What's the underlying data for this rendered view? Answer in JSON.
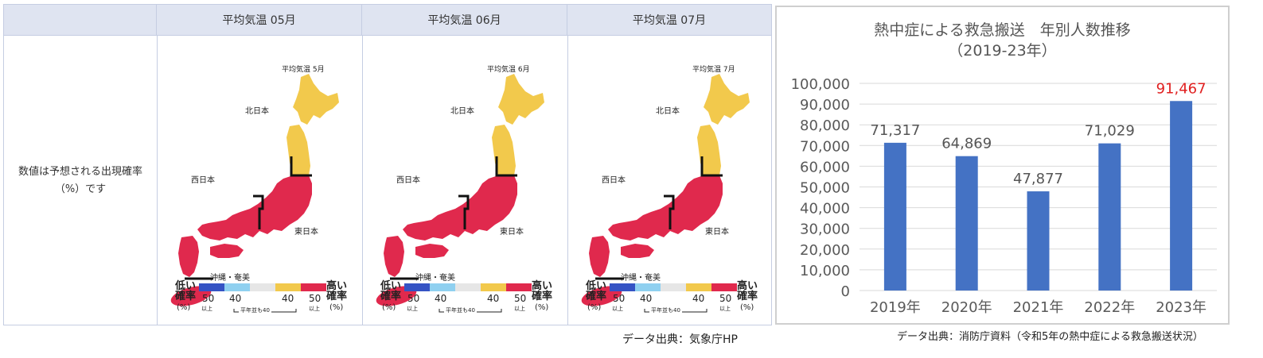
{
  "table": {
    "headers": [
      "平均気温 05月",
      "平均気温 06月",
      "平均気温 07月"
    ],
    "row_label_line1": "数値は予想される出現確率",
    "row_label_line2": "（%）です",
    "maps": [
      {
        "map_title": "平均気温 5月"
      },
      {
        "map_title": "平均気温 6月"
      },
      {
        "map_title": "平均気温 7月"
      }
    ],
    "region_labels": {
      "north": "北日本",
      "west": "西日本",
      "east": "東日本",
      "okinawa": "沖縄・奄美"
    },
    "legend": {
      "low_line1": "低い",
      "low_line2": "確率",
      "pct": "(%)",
      "high_line1": "高い",
      "high_line2": "確率",
      "nums": [
        "50",
        "40",
        "40",
        "50"
      ],
      "ijou": "以上",
      "normal_note": "平年並も40",
      "colors": [
        "#3553c4",
        "#8fd0f0",
        "#e6e6e6",
        "#f2c94c",
        "#e0294d"
      ]
    },
    "colors": {
      "above_normal": "#e0294d",
      "high_yellow": "#f2c94c",
      "header_bg": "#dfe4f1"
    }
  },
  "source_left": "データ出典：気象庁HP",
  "source_right": "データ出典：消防庁資料（令和5年の熱中症による救急搬送状況）",
  "chart_data": {
    "type": "bar",
    "title_line1": "熱中症による救急搬送　年別人数推移",
    "title_line2": "（2019-23年）",
    "categories": [
      "2019年",
      "2020年",
      "2021年",
      "2022年",
      "2023年"
    ],
    "values": [
      71317,
      64869,
      47877,
      71029,
      91467
    ],
    "value_labels": [
      "71,317",
      "64,869",
      "47,877",
      "71,029",
      "91,467"
    ],
    "highlight_index": 4,
    "y_ticks": [
      "0",
      "10,000",
      "20,000",
      "30,000",
      "40,000",
      "50,000",
      "60,000",
      "70,000",
      "80,000",
      "90,000",
      "100,000"
    ],
    "ylim": [
      0,
      100000
    ],
    "grid": true,
    "colors": {
      "bar": "#4472c4",
      "highlight_label": "#e02020",
      "label": "#555555"
    }
  }
}
